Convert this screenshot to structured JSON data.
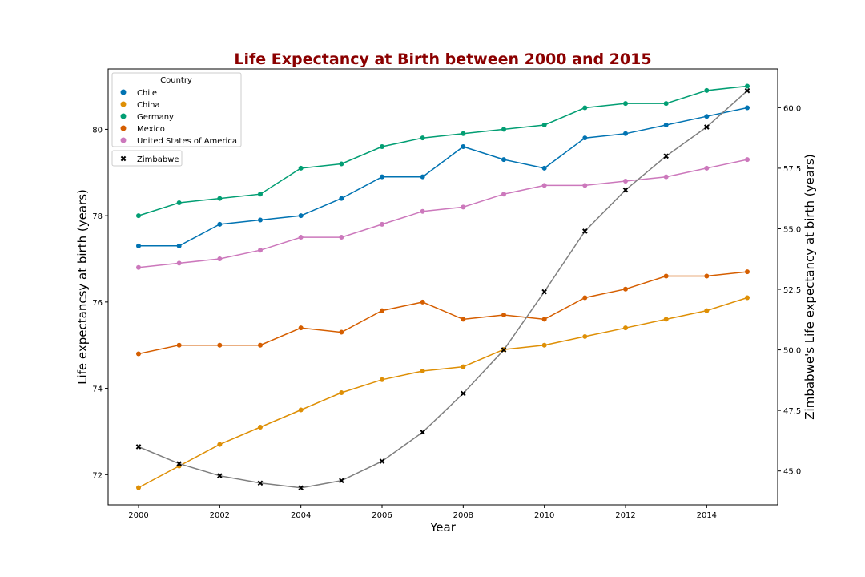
{
  "chart_data": {
    "type": "line",
    "title": "Life Expectancy at Birth between 2000 and 2015",
    "title_color": "#8b0000",
    "xlabel": "Year",
    "ylabel_left": "Life expectancsy at birth (years)",
    "ylabel_right": "Zimbabwe's Life expectancy at birth (years)",
    "x": [
      2000,
      2001,
      2002,
      2003,
      2004,
      2005,
      2006,
      2007,
      2008,
      2009,
      2010,
      2011,
      2012,
      2013,
      2014,
      2015
    ],
    "xlim": [
      1999.25,
      2015.75
    ],
    "x_ticks": [
      "2000",
      "2002",
      "2004",
      "2006",
      "2008",
      "2010",
      "2012",
      "2014"
    ],
    "ylim_left": [
      71.3,
      81.4
    ],
    "y_ticks_left": [
      "72",
      "74",
      "76",
      "78",
      "80"
    ],
    "ylim_right": [
      43.6,
      61.6
    ],
    "y_ticks_right": [
      "45.0",
      "47.5",
      "50.0",
      "52.5",
      "55.0",
      "57.5",
      "60.0"
    ],
    "legend_title": "Country",
    "legend_position": "upper-left",
    "series": [
      {
        "name": "Chile",
        "color": "#0173b2",
        "axis": "left",
        "values": [
          77.3,
          77.3,
          77.8,
          77.9,
          78.0,
          78.4,
          78.9,
          78.9,
          79.6,
          79.3,
          79.1,
          79.8,
          79.9,
          80.1,
          80.3,
          80.5
        ]
      },
      {
        "name": "China",
        "color": "#de8f05",
        "axis": "left",
        "values": [
          71.7,
          72.2,
          72.7,
          73.1,
          73.5,
          73.9,
          74.2,
          74.4,
          74.5,
          74.9,
          75.0,
          75.2,
          75.4,
          75.6,
          75.8,
          76.1
        ]
      },
      {
        "name": "Germany",
        "color": "#029e73",
        "axis": "left",
        "values": [
          78.0,
          78.3,
          78.4,
          78.5,
          79.1,
          79.2,
          79.6,
          79.8,
          79.9,
          80.0,
          80.1,
          80.5,
          80.6,
          80.6,
          80.9,
          81.0
        ]
      },
      {
        "name": "Mexico",
        "color": "#d55e00",
        "axis": "left",
        "values": [
          74.8,
          75.0,
          75.0,
          75.0,
          75.4,
          75.3,
          75.8,
          76.0,
          75.6,
          75.7,
          75.6,
          76.1,
          76.3,
          76.6,
          76.6,
          76.7
        ]
      },
      {
        "name": "United States of America",
        "color": "#cc78bc",
        "axis": "left",
        "values": [
          76.8,
          76.9,
          77.0,
          77.2,
          77.5,
          77.5,
          77.8,
          78.1,
          78.2,
          78.5,
          78.7,
          78.7,
          78.8,
          78.9,
          79.1,
          79.3
        ]
      },
      {
        "name": "Zimbabwe",
        "color": "#7f7f7f",
        "marker_color": "#000000",
        "axis": "right",
        "values": [
          46.0,
          45.3,
          44.8,
          44.5,
          44.3,
          44.6,
          45.4,
          46.6,
          48.2,
          50.0,
          52.4,
          54.9,
          56.6,
          58.0,
          59.2,
          60.7
        ]
      }
    ]
  }
}
